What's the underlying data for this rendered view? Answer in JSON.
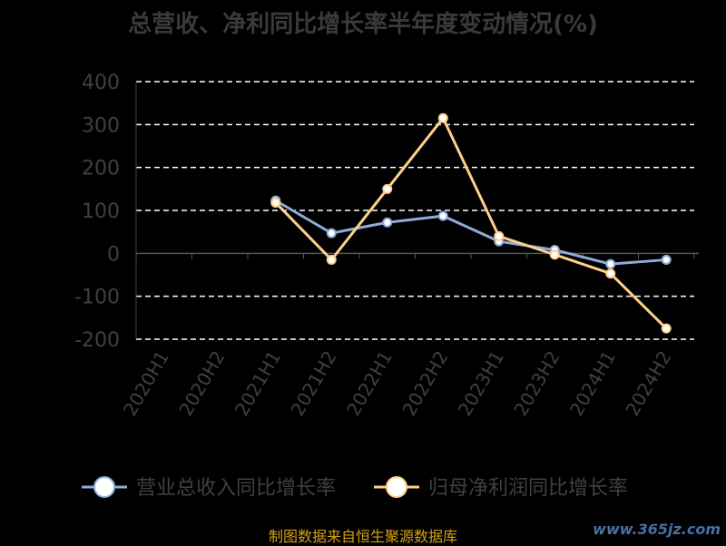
{
  "chart_data": {
    "type": "line",
    "title": "总营收、净利同比增长率半年度变动情况(%)",
    "categories": [
      "2020H1",
      "2020H2",
      "2021H1",
      "2021H2",
      "2022H1",
      "2022H2",
      "2023H1",
      "2023H2",
      "2024H1",
      "2024H2"
    ],
    "yticks": [
      400,
      300,
      200,
      100,
      0,
      -100,
      -200
    ],
    "ylim": [
      -200,
      400
    ],
    "grid": true,
    "legend_position": "bottom",
    "series": [
      {
        "name": "营业总收入同比增长率",
        "color": "#8eacd8",
        "values": [
          null,
          null,
          123,
          47,
          72,
          87,
          28,
          8,
          -25,
          -15
        ]
      },
      {
        "name": "归母净利润同比增长率",
        "color": "#ffd08a",
        "values": [
          null,
          null,
          118,
          -15,
          150,
          315,
          40,
          -3,
          -47,
          -175
        ]
      }
    ]
  },
  "footer": "制图数据来自恒生聚源数据库",
  "watermark": "www.365jz.com"
}
